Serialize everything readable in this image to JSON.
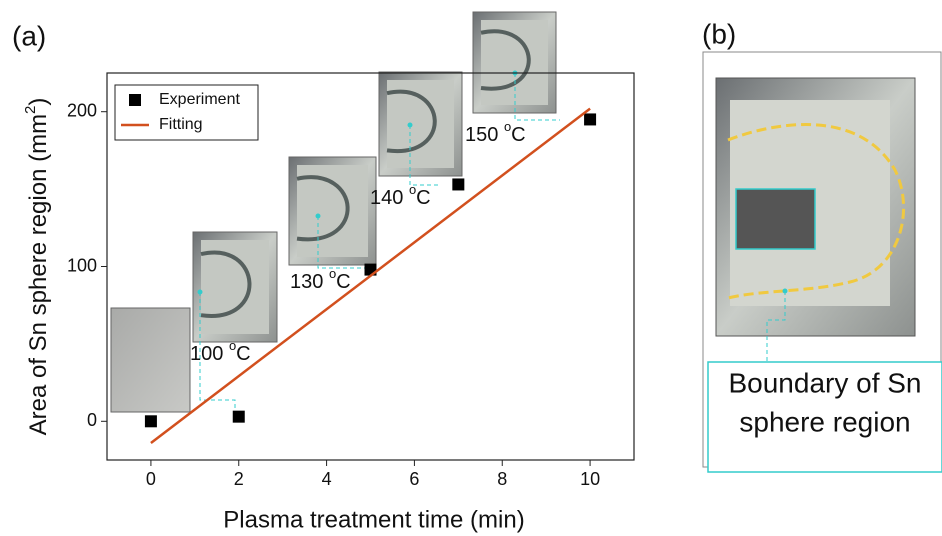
{
  "chart_data": {
    "type": "scatter",
    "panel_label": "(a)",
    "xlabel": "Plasma treatment time (min)",
    "ylabel": {
      "text": "Area of Sn sphere region (mm",
      "sup": "2",
      "end": ")"
    },
    "xlim": [
      -1,
      11
    ],
    "xticks": [
      0,
      2,
      4,
      6,
      8,
      10
    ],
    "ylim": [
      -25,
      225
    ],
    "yticks": [
      0,
      100,
      200
    ],
    "legend": "upper left",
    "series": [
      {
        "name": "Experiment",
        "type": "scatter",
        "color": "#000000",
        "x": [
          0,
          2,
          5,
          7,
          10
        ],
        "values": [
          0,
          3,
          98,
          153,
          195
        ]
      },
      {
        "name": "Fitting",
        "type": "line",
        "color": "#d2501e",
        "x": [
          0,
          10
        ],
        "values": [
          -14,
          202
        ]
      }
    ],
    "annotations": [
      {
        "text": "100 ",
        "sup": "o",
        "unit": "C"
      },
      {
        "text": "130 ",
        "sup": "o",
        "unit": "C"
      },
      {
        "text": "140 ",
        "sup": "o",
        "unit": "C"
      },
      {
        "text": "150 ",
        "sup": "o",
        "unit": "C"
      }
    ]
  },
  "panel_b": {
    "label": "(b)",
    "callout": [
      "Boundary of Sn",
      "sphere region"
    ]
  }
}
